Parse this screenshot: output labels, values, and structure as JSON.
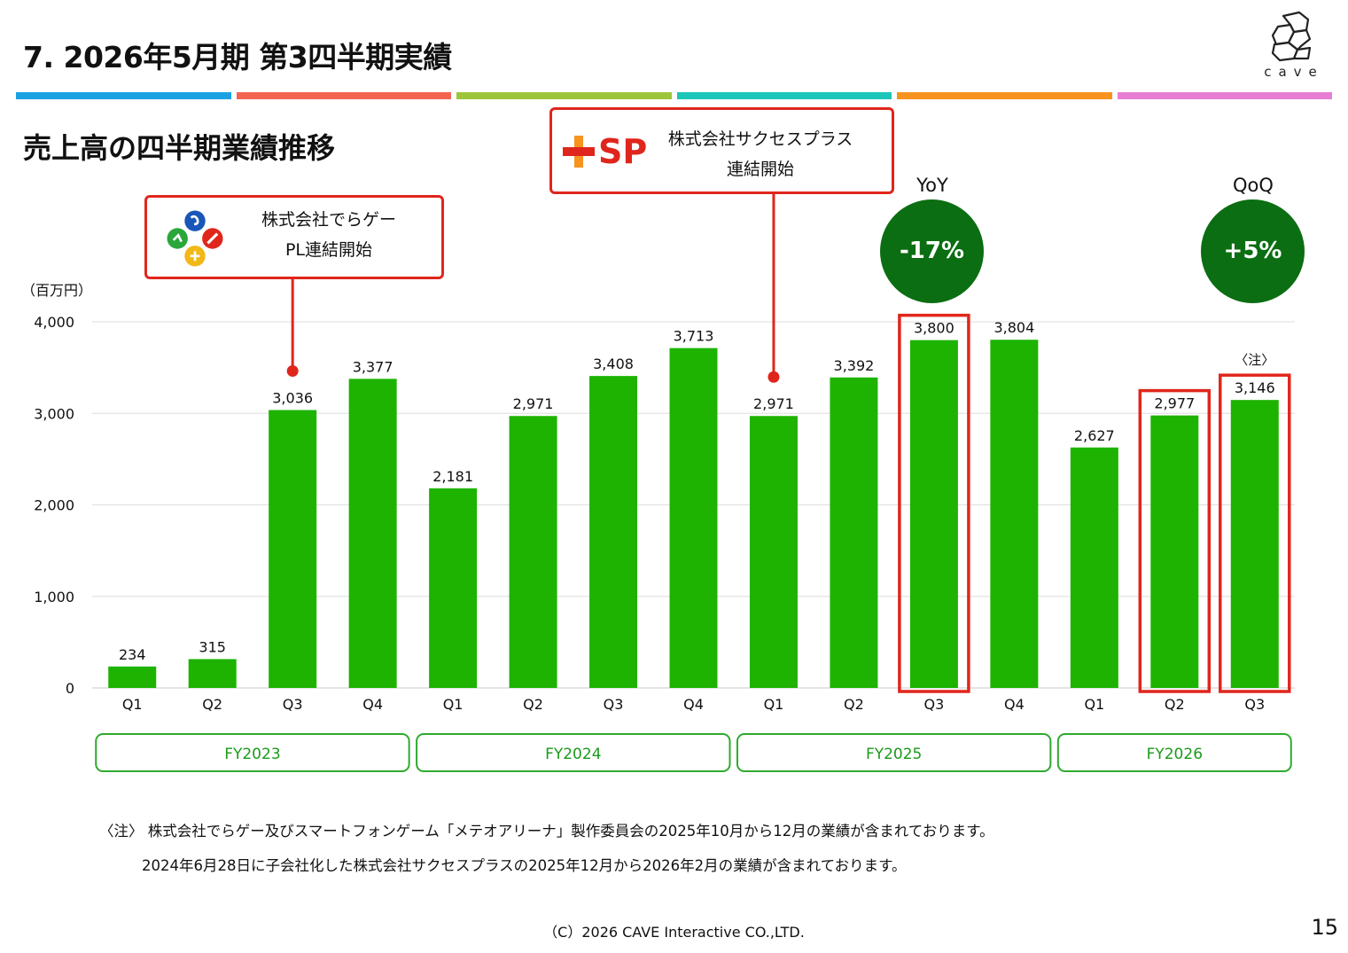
{
  "slide_title": "7.  2026年5月期  第3四半期実績",
  "section_title": "売上高の四半期業績推移",
  "logo_text": "cave",
  "color_strip": [
    "#1ba1e2",
    "#f26651",
    "#9dc53b",
    "#1cc6b9",
    "#f7931e",
    "#e67fd4"
  ],
  "callouts": {
    "derage": {
      "line1": "株式会社でらゲー",
      "line2": "PL連結開始"
    },
    "successplus": {
      "logo_text": "SP",
      "line1": "株式会社サクセスプラス",
      "line2": "連結開始"
    }
  },
  "badges": {
    "yoy": {
      "label": "YoY",
      "value": "-17%"
    },
    "qoq": {
      "label": "QoQ",
      "value": "+5%"
    }
  },
  "colors": {
    "bar": "#1db300",
    "badge": "#0b6e12",
    "highlight": "#e0261c",
    "fy_border": "#2eaa2e",
    "fy_text": "#1a9a1a",
    "grid": "#dddddd"
  },
  "chart_data": {
    "type": "bar",
    "unit_label": "（百万円）",
    "ylim": [
      0,
      4000
    ],
    "yticks": [
      0,
      1000,
      2000,
      3000,
      4000
    ],
    "ytick_labels": [
      "0",
      "1,000",
      "2,000",
      "3,000",
      "4,000"
    ],
    "grid": true,
    "categories": [
      "Q1",
      "Q2",
      "Q3",
      "Q4",
      "Q1",
      "Q2",
      "Q3",
      "Q4",
      "Q1",
      "Q2",
      "Q3",
      "Q4",
      "Q1",
      "Q2",
      "Q3"
    ],
    "values": [
      234,
      315,
      3036,
      3377,
      2181,
      2971,
      3408,
      3713,
      2971,
      3392,
      3800,
      3804,
      2627,
      2977,
      3146
    ],
    "value_labels": [
      "234",
      "315",
      "3,036",
      "3,377",
      "2,181",
      "2,971",
      "3,408",
      "3,713",
      "2,971",
      "3,392",
      "3,800",
      "3,804",
      "2,627",
      "2,977",
      "3,146"
    ],
    "fiscal_years": [
      {
        "label": "FY2023",
        "start": 0,
        "end": 3
      },
      {
        "label": "FY2024",
        "start": 4,
        "end": 7
      },
      {
        "label": "FY2025",
        "start": 8,
        "end": 11
      },
      {
        "label": "FY2026",
        "start": 12,
        "end": 14
      }
    ],
    "highlighted_indices": [
      10,
      13,
      14
    ],
    "annotation": {
      "index": 14,
      "text": "〈注〉"
    },
    "callout_pointers": [
      {
        "callout": "derage",
        "index": 2
      },
      {
        "callout": "successplus",
        "index": 8
      }
    ]
  },
  "note": {
    "line1": "〈注〉 株式会社でらゲー及びスマートフォンゲーム「メテオアリーナ」製作委員会の2025年10月から12月の業績が含まれております。",
    "line2": "2024年6月28日に子会社化した株式会社サクセスプラスの2025年12月から2026年2月の業績が含まれております。"
  },
  "footer": "（C）2026 CAVE Interactive CO.,LTD.",
  "page_number": "15"
}
